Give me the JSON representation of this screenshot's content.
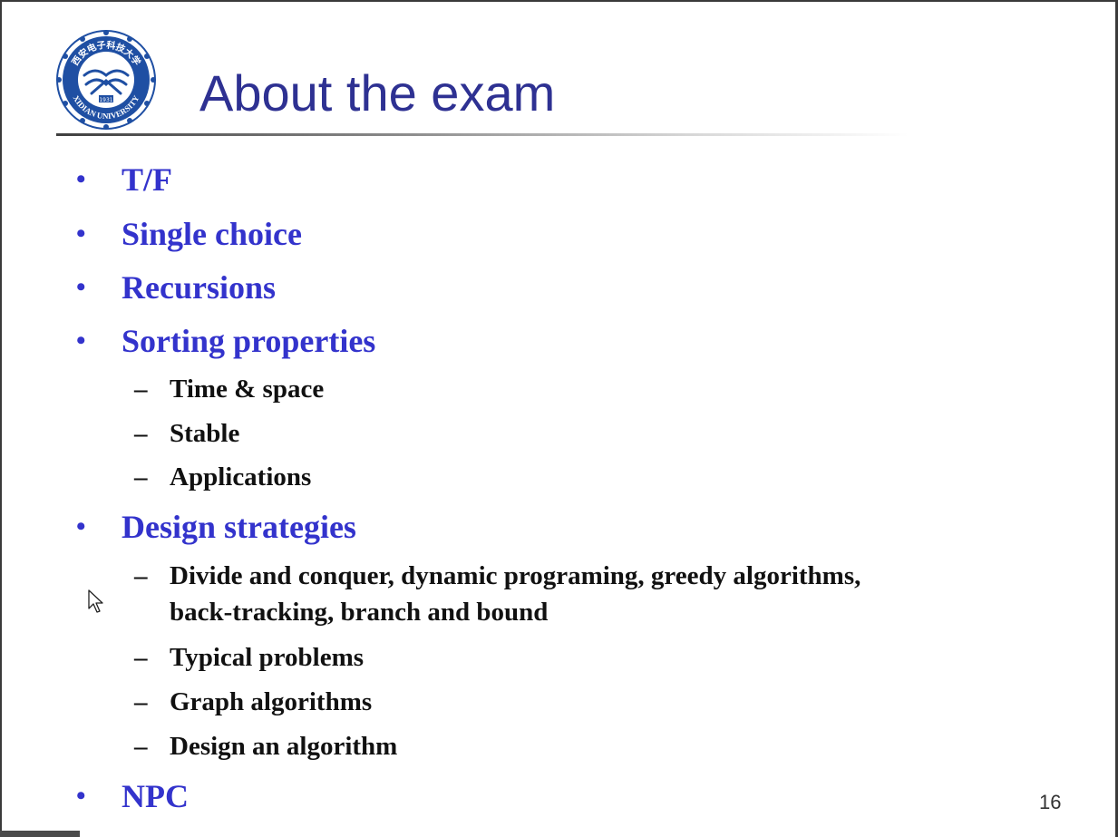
{
  "slide": {
    "title": "About the exam",
    "page_number": "16",
    "logo": {
      "icon": "xidian-university-seal",
      "top_text": "西安电子科技大学",
      "bottom_text": "XIDIAN UNIVERSITY",
      "year": "1931"
    },
    "bullets": [
      {
        "text": "T/F",
        "bullet": "•"
      },
      {
        "text": "Single choice",
        "bullet": "•"
      },
      {
        "text": "Recursions",
        "bullet": "•"
      },
      {
        "text": "Sorting properties",
        "bullet": "•",
        "subitems": [
          {
            "text": "Time & space",
            "dash": "–"
          },
          {
            "text": "Stable",
            "dash": "–"
          },
          {
            "text": "Applications",
            "dash": "–"
          }
        ]
      },
      {
        "text": "Design strategies",
        "bullet": "•",
        "subitems": [
          {
            "text": "Divide and conquer, dynamic programing, greedy algorithms,",
            "continuation": "back-tracking, branch and bound",
            "dash": "–"
          },
          {
            "text": "Typical problems",
            "dash": "–"
          },
          {
            "text": "Graph algorithms",
            "dash": "–"
          },
          {
            "text": "Design an algorithm",
            "dash": "–"
          }
        ]
      },
      {
        "text": "NPC",
        "bullet": "•"
      }
    ]
  },
  "colors": {
    "title": "#2e3192",
    "bullet_text": "#3333cc",
    "sub_text": "#111111",
    "logo_blue": "#1f4fa3"
  },
  "cursor": {
    "icon": "mouse-pointer-icon"
  }
}
